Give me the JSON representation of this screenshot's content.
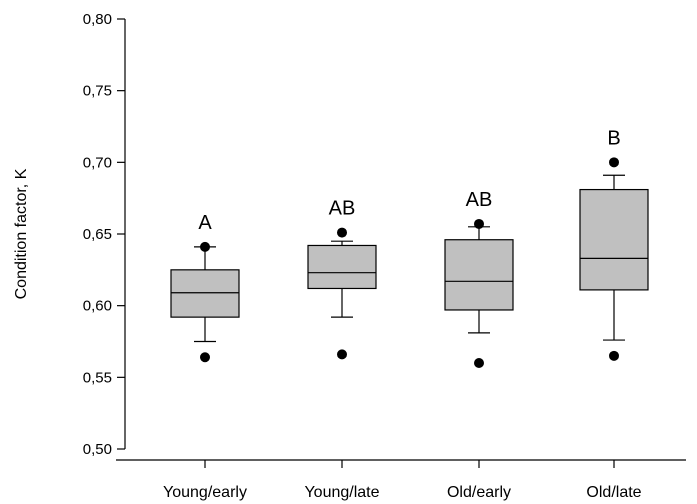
{
  "chart_data": {
    "type": "box",
    "ylabel": "Condition factor, K",
    "xlabel": "",
    "ylim": [
      0.5,
      0.8
    ],
    "y_ticks": [
      "0,50",
      "0,55",
      "0,60",
      "0,65",
      "0,70",
      "0,75",
      "0,80"
    ],
    "categories": [
      "Young/early",
      "Young/late",
      "Old/early",
      "Old/late"
    ],
    "group_letters": [
      "A",
      "AB",
      "AB",
      "B"
    ],
    "boxes": [
      {
        "category": "Young/early",
        "whisker_low": 0.575,
        "q1": 0.592,
        "median": 0.609,
        "q3": 0.625,
        "whisker_high": 0.641,
        "outliers": [
          0.564,
          0.641
        ]
      },
      {
        "category": "Young/late",
        "whisker_low": 0.592,
        "q1": 0.612,
        "median": 0.623,
        "q3": 0.642,
        "whisker_high": 0.645,
        "outliers": [
          0.566,
          0.651
        ]
      },
      {
        "category": "Old/early",
        "whisker_low": 0.581,
        "q1": 0.597,
        "median": 0.617,
        "q3": 0.646,
        "whisker_high": 0.655,
        "outliers": [
          0.56,
          0.657
        ]
      },
      {
        "category": "Old/late",
        "whisker_low": 0.576,
        "q1": 0.611,
        "median": 0.633,
        "q3": 0.681,
        "whisker_high": 0.691,
        "outliers": [
          0.565,
          0.7
        ]
      }
    ],
    "grid": false,
    "legend": "none",
    "colors": {
      "box_fill": "#c0c0c0",
      "stroke": "#000000",
      "outlier": "#000000"
    }
  }
}
